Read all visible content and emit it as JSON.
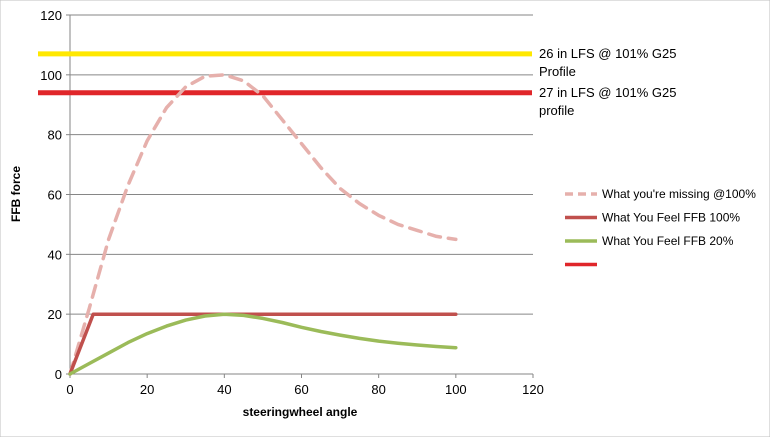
{
  "chart_data": {
    "type": "line",
    "title": "",
    "xlabel": "steeringwheel angle",
    "ylabel": "FFB force",
    "xlim": [
      0,
      120
    ],
    "ylim": [
      0,
      120
    ],
    "xticks": [
      0,
      20,
      40,
      60,
      80,
      100,
      120
    ],
    "yticks": [
      0,
      20,
      40,
      60,
      80,
      100,
      120
    ],
    "grid": "horizontal",
    "legend_position": "right",
    "series": [
      {
        "name": "What you're missing @100%",
        "color": "#E6B0AC",
        "dashed": true,
        "x": [
          0,
          5,
          10,
          15,
          20,
          25,
          30,
          35,
          40,
          45,
          50,
          55,
          60,
          65,
          70,
          75,
          80,
          85,
          90,
          95,
          100
        ],
        "y": [
          0,
          22,
          45,
          63,
          78,
          89,
          96,
          99.5,
          100,
          98,
          93,
          85,
          77,
          69,
          62,
          57,
          53,
          50,
          48,
          46,
          45
        ]
      },
      {
        "name": "What You Feel FFB 100%",
        "color": "#C0504D",
        "dashed": false,
        "x": [
          0,
          6,
          100
        ],
        "y": [
          0,
          20,
          20
        ]
      },
      {
        "name": "What You Feel FFB 20%",
        "color": "#9BBB59",
        "dashed": false,
        "x": [
          0,
          5,
          10,
          15,
          20,
          25,
          30,
          35,
          40,
          45,
          50,
          55,
          60,
          65,
          70,
          75,
          80,
          85,
          90,
          95,
          100
        ],
        "y": [
          0,
          3.5,
          7,
          10.5,
          13.5,
          16,
          18,
          19.4,
          20,
          19.6,
          18.6,
          17.2,
          15.6,
          14.2,
          13,
          11.9,
          11,
          10.3,
          9.7,
          9.2,
          8.8
        ]
      },
      {
        "name": "",
        "color": "#E0262A",
        "dashed": false,
        "x": [],
        "y": []
      }
    ],
    "reference_lines": [
      {
        "y": 107,
        "color": "#FFE800",
        "label_lines": [
          "26 in LFS @ 101% G25",
          "Profile"
        ]
      },
      {
        "y": 94,
        "color": "#E0262A",
        "label_lines": [
          "27 in LFS @ 101%  G25",
          "profile"
        ]
      }
    ]
  }
}
